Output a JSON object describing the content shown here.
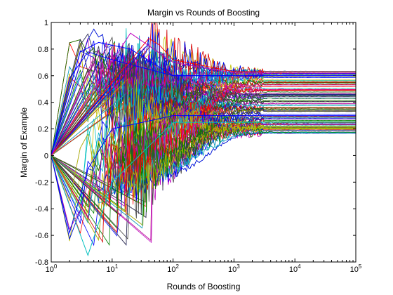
{
  "chart_data": {
    "type": "line",
    "title": "Margin vs Rounds of Boosting",
    "xlabel": "Rounds of Boosting",
    "ylabel": "Margin of Example",
    "xscale": "log",
    "xlim": [
      1,
      100000
    ],
    "ylim": [
      -0.8,
      1.0
    ],
    "grid": false,
    "legend": "none",
    "x_ticks": [
      {
        "value": 1,
        "base": "10",
        "exp": "0"
      },
      {
        "value": 10,
        "base": "10",
        "exp": "1"
      },
      {
        "value": 100,
        "base": "10",
        "exp": "2"
      },
      {
        "value": 1000,
        "base": "10",
        "exp": "3"
      },
      {
        "value": 10000,
        "base": "10",
        "exp": "4"
      },
      {
        "value": 100000,
        "base": "10",
        "exp": "5"
      }
    ],
    "y_ticks": [
      {
        "value": -0.8,
        "label": "-0.8"
      },
      {
        "value": -0.6,
        "label": "-0.6"
      },
      {
        "value": -0.4,
        "label": "-0.4"
      },
      {
        "value": -0.2,
        "label": "-0.2"
      },
      {
        "value": 0,
        "label": "0"
      },
      {
        "value": 0.2,
        "label": "0.2"
      },
      {
        "value": 0.4,
        "label": "0.4"
      },
      {
        "value": 0.6,
        "label": "0.6"
      },
      {
        "value": 0.8,
        "label": "0.8"
      },
      {
        "value": 1,
        "label": "1"
      }
    ],
    "series_colors": [
      "#0000ff",
      "#008000",
      "#ff0000",
      "#00bfbf",
      "#bf00bf",
      "#bfbf00",
      "#404040"
    ],
    "series_count": 140,
    "series": [
      {
        "x": [
          1,
          2,
          4,
          10,
          100,
          1000,
          100000
        ],
        "values": [
          0,
          0.58,
          0.78,
          0.72,
          0.6,
          0.6,
          0.6
        ]
      },
      {
        "x": [
          1,
          2,
          4,
          10,
          100,
          1000,
          100000
        ],
        "values": [
          0,
          -0.58,
          -0.1,
          0.2,
          0.3,
          0.3,
          0.3
        ]
      },
      {
        "x": [
          1,
          4,
          10,
          100,
          1000,
          100000
        ],
        "values": [
          0,
          -0.75,
          -0.2,
          0.25,
          0.25,
          0.25
        ]
      },
      {
        "x": [
          1,
          3,
          6,
          20,
          100,
          1000,
          100000
        ],
        "values": [
          0,
          0.78,
          0.85,
          0.8,
          0.6,
          0.6,
          0.6
        ]
      },
      {
        "x": [
          1,
          40,
          60,
          100,
          1000,
          100000
        ],
        "values": [
          0,
          0.88,
          0.83,
          0.72,
          0.63,
          0.63
        ]
      },
      {
        "x": [
          1,
          20,
          100,
          1000,
          100000
        ],
        "values": [
          0,
          0.92,
          0.7,
          0.62,
          0.62
        ]
      }
    ]
  }
}
